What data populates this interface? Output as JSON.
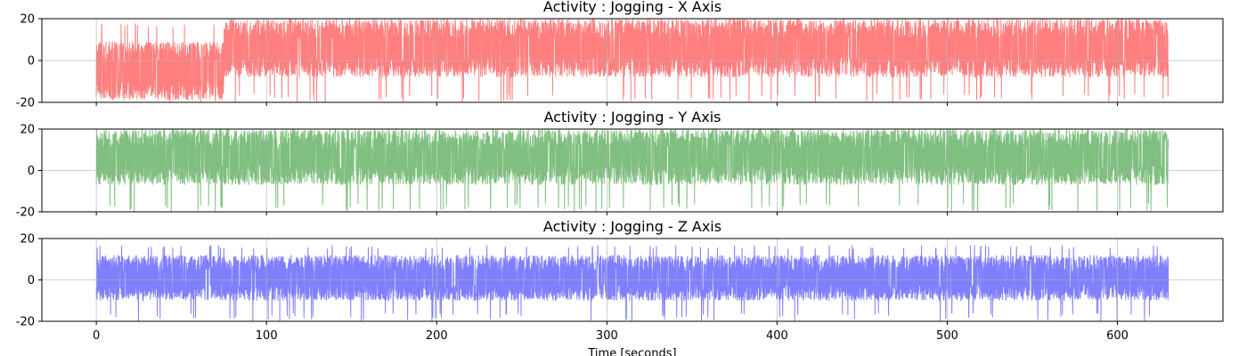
{
  "chart_data": [
    {
      "type": "line",
      "title": "Activity : Jogging - X Axis",
      "xlabel": "",
      "ylabel": "",
      "xlim": [
        -32,
        662
      ],
      "ylim": [
        -20,
        20
      ],
      "xticks": [
        0,
        100,
        200,
        300,
        400,
        500,
        600
      ],
      "yticks": [
        -20,
        0,
        20
      ],
      "xtick_labels_visible": false,
      "grid": true,
      "color": "#ff0000",
      "alpha": 0.5,
      "series": [
        {
          "segments": [
            {
              "x": [
                0,
                75
              ],
              "low": -19,
              "high": 9,
              "spike_low": -20,
              "spike_high": 18
            },
            {
              "x": [
                75,
                630
              ],
              "low": -8,
              "high": 20,
              "spike_low": -20,
              "spike_high": 20
            }
          ]
        }
      ]
    },
    {
      "type": "line",
      "title": "Activity : Jogging - Y Axis",
      "xlabel": "",
      "ylabel": "",
      "xlim": [
        -32,
        662
      ],
      "ylim": [
        -20,
        20
      ],
      "xticks": [
        0,
        100,
        200,
        300,
        400,
        500,
        600
      ],
      "yticks": [
        -20,
        0,
        20
      ],
      "xtick_labels_visible": false,
      "grid": true,
      "color": "#008000",
      "alpha": 0.5,
      "series": [
        {
          "segments": [
            {
              "x": [
                0,
                630
              ],
              "low": -7,
              "high": 20,
              "spike_low": -20,
              "spike_high": 20
            }
          ]
        }
      ]
    },
    {
      "type": "line",
      "title": "Activity : Jogging - Z Axis",
      "xlabel": "Time [seconds]",
      "ylabel": "",
      "xlim": [
        -32,
        662
      ],
      "ylim": [
        -20,
        20
      ],
      "xticks": [
        0,
        100,
        200,
        300,
        400,
        500,
        600
      ],
      "yticks": [
        -20,
        0,
        20
      ],
      "xtick_labels_visible": true,
      "grid": true,
      "color": "#0000ff",
      "alpha": 0.5,
      "series": [
        {
          "segments": [
            {
              "x": [
                0,
                630
              ],
              "low": -10,
              "high": 12,
              "spike_low": -20,
              "spike_high": 17
            }
          ]
        }
      ]
    }
  ]
}
